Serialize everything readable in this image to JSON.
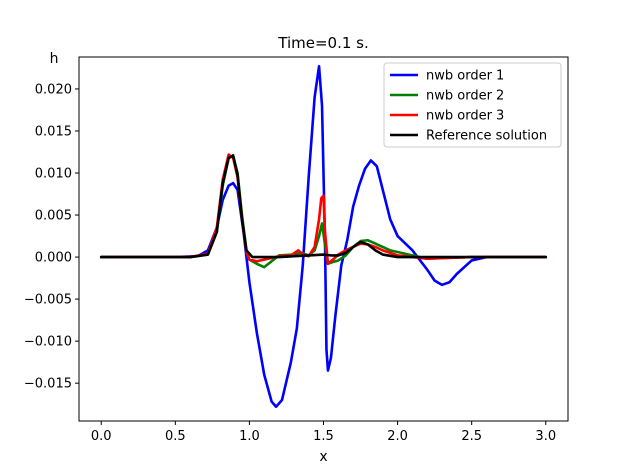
{
  "chart_data": {
    "type": "line",
    "title": "Time=0.1 s.",
    "xlabel": "x",
    "ylabel": "h",
    "xlim": [
      -0.15,
      3.15
    ],
    "ylim": [
      -0.0195,
      0.0238
    ],
    "xticks": [
      0.0,
      0.5,
      1.0,
      1.5,
      2.0,
      2.5,
      3.0
    ],
    "xtick_labels": [
      "0.0",
      "0.5",
      "1.0",
      "1.5",
      "2.0",
      "2.5",
      "3.0"
    ],
    "yticks": [
      -0.015,
      -0.01,
      -0.005,
      0.0,
      0.005,
      0.01,
      0.015,
      0.02
    ],
    "ytick_labels": [
      "−0.015",
      "−0.010",
      "−0.005",
      "0.000",
      "0.005",
      "0.010",
      "0.015",
      "0.020"
    ],
    "grid": false,
    "legend_position": "top-right",
    "series": [
      {
        "name": "nwb order 1",
        "color": "#0000ff",
        "x": [
          0.0,
          0.5,
          0.65,
          0.72,
          0.78,
          0.82,
          0.86,
          0.89,
          0.92,
          0.96,
          1.0,
          1.05,
          1.1,
          1.15,
          1.18,
          1.22,
          1.28,
          1.32,
          1.36,
          1.4,
          1.44,
          1.47,
          1.49,
          1.51,
          1.52,
          1.53,
          1.55,
          1.58,
          1.62,
          1.66,
          1.7,
          1.74,
          1.78,
          1.82,
          1.86,
          1.9,
          1.95,
          2.0,
          2.1,
          2.2,
          2.25,
          2.3,
          2.35,
          2.4,
          2.5,
          2.6,
          2.8,
          3.0
        ],
        "y": [
          0.0,
          0.0,
          0.0001,
          0.0008,
          0.0035,
          0.0068,
          0.0085,
          0.0088,
          0.008,
          0.003,
          -0.003,
          -0.009,
          -0.014,
          -0.0172,
          -0.0178,
          -0.017,
          -0.0125,
          -0.0085,
          -0.001,
          0.0095,
          0.019,
          0.0227,
          0.018,
          0.002,
          -0.011,
          -0.0135,
          -0.012,
          -0.007,
          -0.001,
          0.002,
          0.006,
          0.0085,
          0.0105,
          0.0115,
          0.0108,
          0.008,
          0.0045,
          0.0025,
          0.0008,
          -0.0015,
          -0.0028,
          -0.0033,
          -0.003,
          -0.002,
          -0.0004,
          0.0,
          0.0,
          0.0
        ]
      },
      {
        "name": "nwb order 2",
        "color": "#008000",
        "x": [
          0.0,
          0.6,
          0.72,
          0.78,
          0.82,
          0.86,
          0.89,
          0.92,
          0.95,
          0.98,
          1.0,
          1.05,
          1.1,
          1.15,
          1.2,
          1.3,
          1.35,
          1.4,
          1.44,
          1.47,
          1.49,
          1.51,
          1.53,
          1.56,
          1.6,
          1.65,
          1.7,
          1.75,
          1.8,
          1.85,
          1.9,
          1.95,
          2.0,
          2.05,
          2.1,
          2.2,
          2.3,
          2.5,
          3.0
        ],
        "y": [
          0.0,
          0.0,
          0.0003,
          0.003,
          0.0085,
          0.0118,
          0.012,
          0.01,
          0.005,
          0.0008,
          -0.0003,
          -0.0008,
          -0.0012,
          -0.0005,
          0.0002,
          0.0003,
          0.0005,
          0.0002,
          0.0008,
          0.0025,
          0.004,
          0.0015,
          -0.0008,
          -0.0006,
          -0.0004,
          0.0002,
          0.0012,
          0.0019,
          0.002,
          0.0016,
          0.0012,
          0.0008,
          0.0006,
          0.0004,
          0.0002,
          -0.0002,
          -0.0001,
          0.0,
          0.0
        ]
      },
      {
        "name": "nwb order 3",
        "color": "#ff0000",
        "x": [
          0.0,
          0.6,
          0.72,
          0.78,
          0.82,
          0.86,
          0.89,
          0.92,
          0.95,
          0.98,
          1.0,
          1.05,
          1.1,
          1.2,
          1.28,
          1.33,
          1.36,
          1.4,
          1.44,
          1.47,
          1.485,
          1.5,
          1.51,
          1.53,
          1.57,
          1.6,
          1.65,
          1.7,
          1.75,
          1.8,
          1.85,
          1.9,
          1.95,
          2.0,
          2.1,
          2.2,
          2.5,
          3.0
        ],
        "y": [
          0.0,
          0.0,
          0.0004,
          0.0035,
          0.0092,
          0.0122,
          0.0118,
          0.0095,
          0.0045,
          0.0006,
          -0.0003,
          -0.0005,
          -0.0003,
          0.0001,
          0.0002,
          0.0008,
          0.0003,
          0.0001,
          0.0012,
          0.0045,
          0.007,
          0.0073,
          0.003,
          -0.0008,
          -0.0002,
          0.0003,
          0.0008,
          0.0012,
          0.0016,
          0.0015,
          0.0012,
          0.0008,
          0.0005,
          0.0002,
          0.0,
          -0.0002,
          0.0,
          0.0
        ]
      },
      {
        "name": "Reference solution",
        "color": "#000000",
        "x": [
          0.0,
          0.6,
          0.72,
          0.78,
          0.82,
          0.86,
          0.89,
          0.92,
          0.95,
          0.98,
          1.02,
          1.1,
          1.2,
          1.3,
          1.4,
          1.5,
          1.55,
          1.6,
          1.65,
          1.7,
          1.75,
          1.8,
          1.85,
          1.9,
          2.0,
          2.2,
          2.5,
          3.0
        ],
        "y": [
          0.0,
          0.0,
          0.0003,
          0.003,
          0.0088,
          0.0118,
          0.0121,
          0.0098,
          0.0045,
          0.0008,
          0.0,
          0.0,
          0.0,
          0.0001,
          0.0002,
          0.0003,
          0.0002,
          0.0002,
          0.0005,
          0.0012,
          0.0018,
          0.0015,
          0.0008,
          0.0003,
          0.0,
          0.0,
          0.0,
          0.0
        ]
      }
    ]
  }
}
